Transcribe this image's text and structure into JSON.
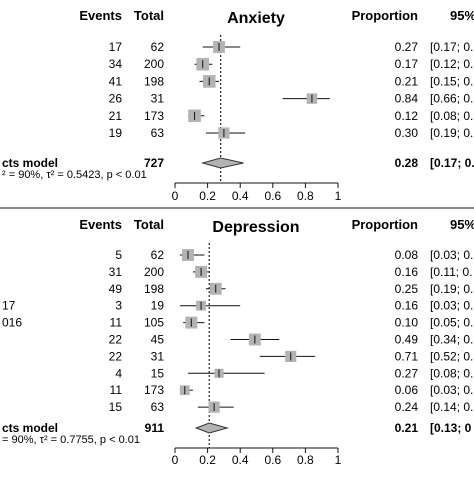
{
  "chart_data": [
    {
      "type": "forest",
      "title": "Anxiety",
      "headers": {
        "events": "Events",
        "total": "Total",
        "proportion": "Proportion",
        "ci": "95%"
      },
      "rows": [
        {
          "label": "",
          "events": "17",
          "total": "62",
          "proportion": "0.27",
          "ci": "[0.17; 0.",
          "est": 0.27,
          "lo": 0.17,
          "hi": 0.4,
          "weight": 0.85
        },
        {
          "label": "",
          "events": "34",
          "total": "200",
          "proportion": "0.17",
          "ci": "[0.12; 0.",
          "est": 0.17,
          "lo": 0.12,
          "hi": 0.23,
          "weight": 0.9
        },
        {
          "label": "",
          "events": "41",
          "total": "198",
          "proportion": "0.21",
          "ci": "[0.15; 0.",
          "est": 0.21,
          "lo": 0.15,
          "hi": 0.27,
          "weight": 0.9
        },
        {
          "label": "",
          "events": "26",
          "total": "31",
          "proportion": "0.84",
          "ci": "[0.66; 0.",
          "est": 0.84,
          "lo": 0.66,
          "hi": 0.95,
          "weight": 0.75
        },
        {
          "label": "",
          "events": "21",
          "total": "173",
          "proportion": "0.12",
          "ci": "[0.08; 0.",
          "est": 0.12,
          "lo": 0.08,
          "hi": 0.18,
          "weight": 0.9
        },
        {
          "label": "",
          "events": "19",
          "total": "63",
          "proportion": "0.30",
          "ci": "[0.19; 0.",
          "est": 0.3,
          "lo": 0.19,
          "hi": 0.43,
          "weight": 0.8
        }
      ],
      "summary": {
        "label": "cts model",
        "total": "727",
        "proportion": "0.28",
        "ci": "[0.17; 0.",
        "est": 0.28,
        "lo": 0.17,
        "hi": 0.42
      },
      "heterogeneity": "² = 90%, τ² = 0.5423, p < 0.01",
      "xticks": [
        "0",
        "0.2",
        "0.4",
        "0.6",
        "0.8",
        "1"
      ],
      "xlim": [
        0,
        1
      ],
      "reference": 0.28
    },
    {
      "type": "forest",
      "title": "Depression",
      "headers": {
        "events": "Events",
        "total": "Total",
        "proportion": "Proportion",
        "ci": "95%"
      },
      "rows": [
        {
          "label": "",
          "events": "5",
          "total": "62",
          "proportion": "0.08",
          "ci": "[0.03; 0.",
          "est": 0.08,
          "lo": 0.03,
          "hi": 0.18,
          "weight": 0.85
        },
        {
          "label": "",
          "events": "31",
          "total": "200",
          "proportion": "0.16",
          "ci": "[0.11; 0.",
          "est": 0.16,
          "lo": 0.11,
          "hi": 0.21,
          "weight": 0.85
        },
        {
          "label": "",
          "events": "49",
          "total": "198",
          "proportion": "0.25",
          "ci": "[0.19; 0.",
          "est": 0.25,
          "lo": 0.19,
          "hi": 0.31,
          "weight": 0.85
        },
        {
          "label": "17",
          "events": "3",
          "total": "19",
          "proportion": "0.16",
          "ci": "[0.03; 0.",
          "est": 0.16,
          "lo": 0.03,
          "hi": 0.4,
          "weight": 0.7
        },
        {
          "label": "016",
          "events": "11",
          "total": "105",
          "proportion": "0.10",
          "ci": "[0.05; 0.",
          "est": 0.1,
          "lo": 0.05,
          "hi": 0.18,
          "weight": 0.85
        },
        {
          "label": "",
          "events": "22",
          "total": "45",
          "proportion": "0.49",
          "ci": "[0.34; 0.",
          "est": 0.49,
          "lo": 0.34,
          "hi": 0.64,
          "weight": 0.85
        },
        {
          "label": "",
          "events": "22",
          "total": "31",
          "proportion": "0.71",
          "ci": "[0.52; 0.",
          "est": 0.71,
          "lo": 0.52,
          "hi": 0.86,
          "weight": 0.8
        },
        {
          "label": "",
          "events": "4",
          "total": "15",
          "proportion": "0.27",
          "ci": "[0.08; 0.",
          "est": 0.27,
          "lo": 0.08,
          "hi": 0.55,
          "weight": 0.65
        },
        {
          "label": "",
          "events": "11",
          "total": "173",
          "proportion": "0.06",
          "ci": "[0.03; 0.",
          "est": 0.06,
          "lo": 0.03,
          "hi": 0.11,
          "weight": 0.7
        },
        {
          "label": "",
          "events": "15",
          "total": "63",
          "proportion": "0.24",
          "ci": "[0.14; 0.",
          "est": 0.24,
          "lo": 0.14,
          "hi": 0.36,
          "weight": 0.8
        }
      ],
      "summary": {
        "label": "cts model",
        "total": "911",
        "proportion": "0.21",
        "ci": "[0.13; 0",
        "est": 0.21,
        "lo": 0.13,
        "hi": 0.32
      },
      "heterogeneity": "= 90%, τ² = 0.7755, p < 0.01",
      "xticks": [
        "0",
        "0.2",
        "0.4",
        "0.6",
        "0.8",
        "1"
      ],
      "xlim": [
        0,
        1
      ],
      "reference": 0.21
    }
  ]
}
